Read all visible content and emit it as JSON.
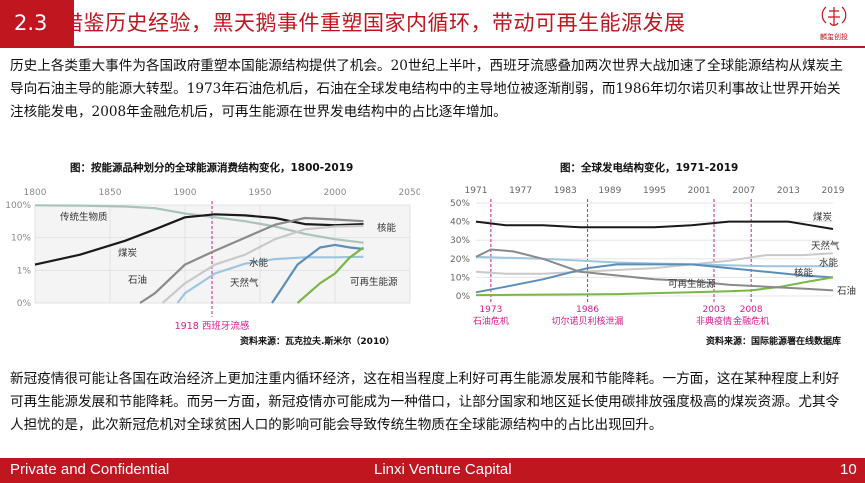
{
  "title": {
    "number": "2.3",
    "text": "借鉴历史经验，黑天鹅事件重塑国家内循环，带动可再生能源发展"
  },
  "logo_text": "麟玺创投",
  "para1": "历史上各类重大事件为各国政府重塑本国能源结构提供了机会。20世纪上半叶，西班牙流感叠加两次世界大战加速了全球能源结构从煤炭主导向石油主导的能源大转型。1973年石油危机后，石油在全球发电结构中的主导地位被逐渐削弱，而1986年切尔诺贝利事故让世界开始关注核能发电，2008年金融危机后，可再生能源在世界发电结构中的占比逐年增加。",
  "para2": "新冠疫情很可能让各国在政治经济上更加注重内循环经济，这在相当程度上利好可再生能源发展和节能降耗。一方面，这在某种程度上利好可再生能源发展和节能降耗。而另一方面，新冠疫情亦可能成为一种借口，让部分国家和地区延长使用碳排放强度极高的煤炭资源。尤其令人担忧的是，此次新冠危机对全球贫困人口的影响可能会导致传统生物质在全球能源结构中的占比出现回升。",
  "chart_data": [
    {
      "type": "line",
      "title": "图：按能源品种划分的全球能源消费结构变化，1800-2019",
      "source": "资料来源：瓦克拉夫.斯米尔（2010）",
      "x_ticks": [
        "1800",
        "1850",
        "1900",
        "1950",
        "2000",
        "2050"
      ],
      "y_ticks": [
        "100%",
        "10%",
        "1%",
        "0%"
      ],
      "y_scale": "log",
      "highlight": {
        "x": 1918,
        "label": "1918 西班牙流感",
        "color": "#d81b8a"
      },
      "series": [
        {
          "name": "传统生物质",
          "color": "#a9c4b8",
          "x": [
            1800,
            1830,
            1860,
            1880,
            1900,
            1920,
            1940,
            1960,
            1980,
            2000,
            2019
          ],
          "y": [
            98,
            96,
            90,
            80,
            55,
            42,
            32,
            22,
            13,
            9,
            7
          ]
        },
        {
          "name": "煤炭",
          "color": "#1a1a1a",
          "x": [
            1800,
            1830,
            1860,
            1880,
            1900,
            1920,
            1940,
            1960,
            1980,
            2000,
            2019
          ],
          "y": [
            1.5,
            3,
            8,
            18,
            42,
            52,
            48,
            40,
            26,
            24,
            26
          ]
        },
        {
          "name": "石油",
          "color": "#8a8a8a",
          "x": [
            1870,
            1880,
            1900,
            1920,
            1940,
            1960,
            1980,
            2000,
            2019
          ],
          "y": [
            0.1,
            0.2,
            1.5,
            4,
            10,
            25,
            40,
            36,
            32
          ]
        },
        {
          "name": "天然气",
          "color": "#c9c9c9",
          "x": [
            1885,
            1900,
            1920,
            1940,
            1960,
            1980,
            2000,
            2019
          ],
          "y": [
            0.1,
            0.4,
            1.5,
            3,
            9,
            18,
            22,
            23
          ]
        },
        {
          "name": "水能",
          "color": "#9dc6de",
          "x": [
            1895,
            1900,
            1920,
            1940,
            1960,
            1980,
            2000,
            2019
          ],
          "y": [
            0.1,
            0.2,
            0.8,
            1.6,
            2.2,
            2.5,
            2.5,
            2.6
          ]
        },
        {
          "name": "核能",
          "color": "#5b8fb9",
          "x": [
            1958,
            1965,
            1975,
            1990,
            2000,
            2010,
            2019
          ],
          "y": [
            0.1,
            0.3,
            1.5,
            5,
            6,
            5,
            4.5
          ]
        },
        {
          "name": "可再生能源",
          "color": "#7ab648",
          "x": [
            1975,
            1990,
            2000,
            2010,
            2019
          ],
          "y": [
            0.1,
            0.4,
            0.8,
            2.5,
            5
          ]
        }
      ]
    },
    {
      "type": "line",
      "title": "图：全球发电结构变化，1971-2019",
      "source": "资料来源：国际能源署在线数据库",
      "x_ticks": [
        "1971",
        "1977",
        "1983",
        "1989",
        "1995",
        "2001",
        "2007",
        "2013",
        "2019"
      ],
      "y_ticks": [
        "50%",
        "40%",
        "30%",
        "20%",
        "10%",
        "0%"
      ],
      "ylim": [
        0,
        50
      ],
      "events": [
        {
          "year": "1973",
          "label": "石油危机",
          "x": 1973
        },
        {
          "year": "1986",
          "label": "切尔诺贝利核泄漏",
          "x": 1986
        },
        {
          "year": "2003",
          "label": "非典疫情",
          "x": 2003
        },
        {
          "year": "2008",
          "label": "金融危机",
          "x": 2008
        }
      ],
      "series": [
        {
          "name": "煤炭",
          "color": "#1a1a1a",
          "x": [
            1971,
            1975,
            1980,
            1985,
            1990,
            1995,
            2000,
            2005,
            2010,
            2013,
            2016,
            2019
          ],
          "y": [
            40,
            38,
            38,
            37,
            37,
            37,
            38,
            40,
            40,
            40,
            38,
            36
          ]
        },
        {
          "name": "天然气",
          "color": "#c9c9c9",
          "x": [
            1971,
            1975,
            1980,
            1985,
            1990,
            1995,
            2000,
            2005,
            2010,
            2015,
            2019
          ],
          "y": [
            13,
            12,
            12,
            13,
            14,
            15,
            17,
            19,
            22,
            22,
            23
          ]
        },
        {
          "name": "水能",
          "color": "#9dc6de",
          "x": [
            1971,
            1980,
            1990,
            2000,
            2010,
            2019
          ],
          "y": [
            21,
            20,
            18,
            17,
            16,
            16
          ]
        },
        {
          "name": "核能",
          "color": "#5b8fb9",
          "x": [
            1971,
            1975,
            1980,
            1986,
            1990,
            1995,
            2000,
            2005,
            2010,
            2015,
            2019
          ],
          "y": [
            2,
            5,
            9,
            15,
            17,
            17,
            17,
            15,
            13,
            11,
            10
          ]
        },
        {
          "name": "可再生能源",
          "color": "#7ab648",
          "x": [
            1971,
            1990,
            2000,
            2005,
            2008,
            2012,
            2016,
            2019
          ],
          "y": [
            0.5,
            1,
            2,
            2.5,
            3,
            5,
            8,
            10
          ]
        },
        {
          "name": "石油",
          "color": "#8a8a8a",
          "x": [
            1971,
            1973,
            1976,
            1980,
            1985,
            1990,
            1995,
            2000,
            2005,
            2010,
            2015,
            2019
          ],
          "y": [
            21,
            25,
            24,
            20,
            13,
            11,
            9,
            8,
            6,
            5,
            4,
            3
          ]
        }
      ]
    }
  ],
  "footer": {
    "left": "Private and Confidential",
    "center": "Linxi Venture Capital",
    "page": "10"
  }
}
